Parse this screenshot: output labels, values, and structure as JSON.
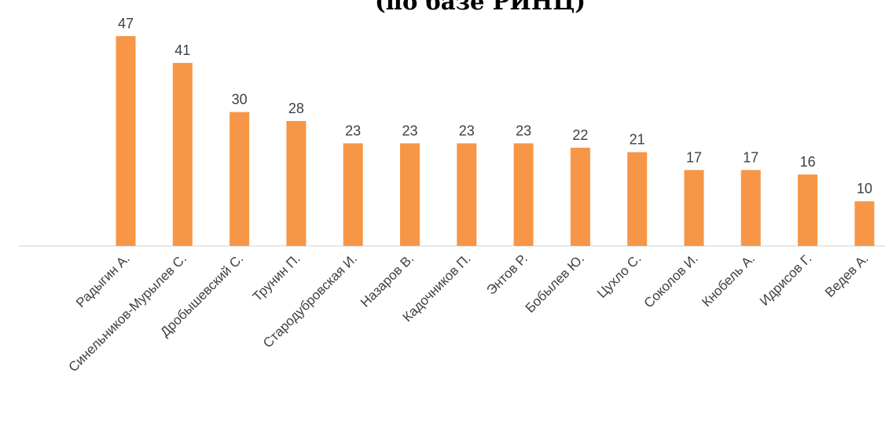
{
  "chart_data": {
    "type": "bar",
    "title": "(по базе РИНЦ)",
    "categories": [
      "Радыгин А.",
      "Синельников-Мурылев С.",
      "Дробышевский С.",
      "Трунин П.",
      "Стародубровская И.",
      "Назаров В.",
      "Кадочников П.",
      "Энтов Р.",
      "Бобылев Ю.",
      "Цухло С.",
      "Соколов И.",
      "Кнобель А.",
      "Идрисов Г.",
      "Ведев А."
    ],
    "values": [
      47,
      41,
      30,
      28,
      23,
      23,
      23,
      23,
      22,
      21,
      17,
      17,
      16,
      10
    ],
    "ylim": [
      0,
      47
    ],
    "grid": false,
    "legend": "none",
    "colors": {
      "bar": "#F79646",
      "axis": "#D9D9D9",
      "label": "#404040",
      "title": "#000000"
    }
  }
}
